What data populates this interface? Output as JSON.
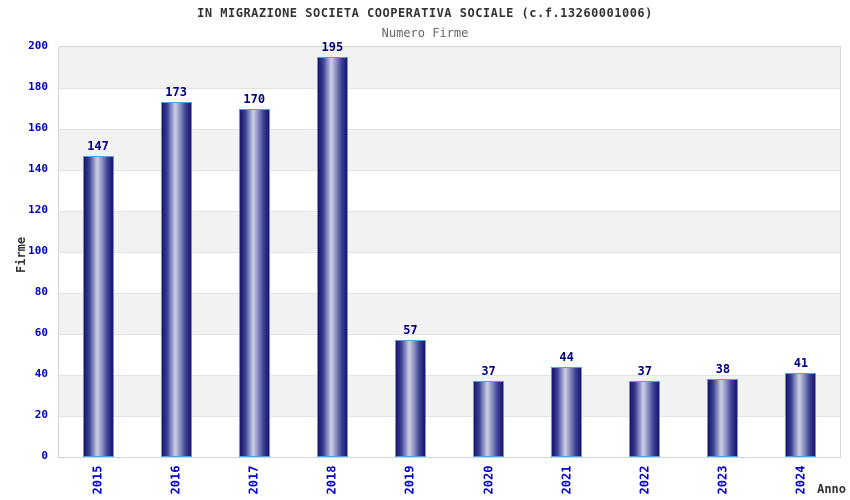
{
  "title": "IN MIGRAZIONE SOCIETA COOPERATIVA SOCIALE (c.f.13260001006)",
  "subtitle": "Numero Firme",
  "chart_data": {
    "type": "bar",
    "title": "IN MIGRAZIONE SOCIETA COOPERATIVA SOCIALE (c.f.13260001006)",
    "subtitle": "Numero Firme",
    "categories": [
      "2015",
      "2016",
      "2017",
      "2018",
      "2019",
      "2020",
      "2021",
      "2022",
      "2023",
      "2024"
    ],
    "values": [
      147,
      173,
      170,
      195,
      57,
      37,
      44,
      37,
      38,
      41
    ],
    "xlabel": "Anno",
    "ylabel": "Firme",
    "ylim": [
      0,
      200
    ],
    "ytick_step": 20,
    "yticks": [
      0,
      20,
      40,
      60,
      80,
      100,
      120,
      140,
      160,
      180,
      200
    ],
    "grid": true,
    "alternating_bands": true,
    "legend": "none"
  },
  "colors": {
    "tick_label": "#0000cc",
    "value_label": "#000080",
    "title_color": "#333333",
    "subtitle_color": "#666666",
    "bar_dark": "#16166b",
    "bar_mid": "#3a3f94",
    "bar_light": "#b0b4d6",
    "bar_lightest": "#cdd0e4",
    "bar_border": "#4aa2e8",
    "band_gray": "#f2f2f2",
    "band_white": "#ffffff",
    "grid_line": "#e3e3e3",
    "plot_border": "#d4d4d4"
  }
}
